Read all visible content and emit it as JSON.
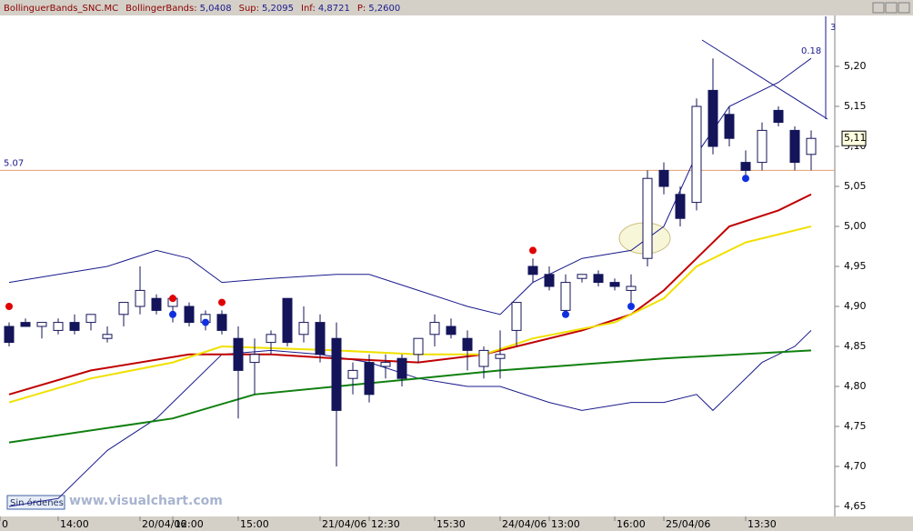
{
  "chart_data": {
    "type": "candlestick",
    "title": "BollinguerBands_SNC.MC",
    "indicator_info": [
      {
        "label": "BollingerBands:",
        "value": "5,0408"
      },
      {
        "label": "Sup:",
        "value": "5,2095"
      },
      {
        "label": "Inf:",
        "value": "4,8721"
      },
      {
        "label": "P:",
        "value": "5,2600"
      }
    ],
    "categories": [
      "0",
      null,
      null,
      "14:00",
      null,
      null,
      null,
      null,
      "20/04/06",
      null,
      "12:00",
      null,
      null,
      null,
      "15:00",
      null,
      null,
      null,
      null,
      "21/04/06",
      null,
      null,
      "12:30",
      null,
      null,
      null,
      "15:30",
      null,
      null,
      null,
      "24/04/06",
      null,
      null,
      "13:00",
      null,
      null,
      null,
      "16:00",
      null,
      null,
      "25/04/06",
      null,
      null,
      null,
      null,
      "13:30",
      null,
      null,
      null,
      null
    ],
    "ohlc": [
      [
        4.875,
        4.88,
        4.85,
        4.855
      ],
      [
        4.88,
        4.885,
        4.875,
        4.875
      ],
      [
        4.875,
        4.88,
        4.86,
        4.88
      ],
      [
        4.87,
        4.885,
        4.865,
        4.88
      ],
      [
        4.88,
        4.89,
        4.865,
        4.87
      ],
      [
        4.88,
        4.89,
        4.87,
        4.89
      ],
      [
        4.86,
        4.875,
        4.855,
        4.865
      ],
      [
        4.89,
        4.9,
        4.875,
        4.905
      ],
      [
        4.9,
        4.95,
        4.89,
        4.92
      ],
      [
        4.91,
        4.915,
        4.89,
        4.895
      ],
      [
        4.9,
        4.915,
        4.88,
        4.91
      ],
      [
        4.9,
        4.905,
        4.875,
        4.88
      ],
      [
        4.88,
        4.895,
        4.87,
        4.89
      ],
      [
        4.89,
        4.895,
        4.865,
        4.87
      ],
      [
        4.86,
        4.875,
        4.76,
        4.82
      ],
      [
        4.83,
        4.86,
        4.79,
        4.84
      ],
      [
        4.855,
        4.87,
        4.84,
        4.865
      ],
      [
        4.91,
        4.91,
        4.85,
        4.855
      ],
      [
        4.865,
        4.9,
        4.855,
        4.88
      ],
      [
        4.88,
        4.89,
        4.83,
        4.84
      ],
      [
        4.86,
        4.88,
        4.7,
        4.77
      ],
      [
        4.81,
        4.83,
        4.79,
        4.82
      ],
      [
        4.83,
        4.84,
        4.78,
        4.79
      ],
      [
        4.825,
        4.84,
        4.81,
        4.83
      ],
      [
        4.835,
        4.84,
        4.8,
        4.81
      ],
      [
        4.84,
        4.86,
        4.83,
        4.86
      ],
      [
        4.865,
        4.89,
        4.85,
        4.88
      ],
      [
        4.875,
        4.885,
        4.86,
        4.865
      ],
      [
        4.86,
        4.87,
        4.82,
        4.845
      ],
      [
        4.825,
        4.85,
        4.81,
        4.845
      ],
      [
        4.835,
        4.87,
        4.81,
        4.84
      ],
      [
        4.87,
        4.9,
        4.85,
        4.905
      ],
      [
        4.95,
        4.96,
        4.93,
        4.94
      ],
      [
        4.94,
        4.95,
        4.92,
        4.925
      ],
      [
        4.895,
        4.94,
        4.89,
        4.93
      ],
      [
        4.935,
        4.94,
        4.93,
        4.94
      ],
      [
        4.94,
        4.945,
        4.925,
        4.93
      ],
      [
        4.93,
        4.935,
        4.92,
        4.925
      ],
      [
        4.92,
        4.94,
        4.9,
        4.925
      ],
      [
        4.96,
        5.07,
        4.95,
        5.06
      ],
      [
        5.07,
        5.08,
        5.04,
        5.05
      ],
      [
        5.04,
        5.05,
        5.0,
        5.01
      ],
      [
        5.03,
        5.16,
        5.02,
        5.15
      ],
      [
        5.17,
        5.21,
        5.09,
        5.1
      ],
      [
        5.14,
        5.15,
        5.1,
        5.11
      ],
      [
        5.08,
        5.095,
        5.06,
        5.07
      ],
      [
        5.08,
        5.13,
        5.07,
        5.12
      ],
      [
        5.145,
        5.15,
        5.125,
        5.13
      ],
      [
        5.12,
        5.125,
        5.07,
        5.08
      ],
      [
        5.09,
        5.12,
        5.07,
        5.11
      ]
    ],
    "up_color": "#ffffff",
    "down_color": "#14145a",
    "lines": [
      {
        "color": "#1a1a8c",
        "x": [
          0,
          3,
          6,
          9,
          11,
          13,
          16,
          20,
          22,
          25,
          28,
          30,
          32,
          35,
          38,
          40,
          42,
          44,
          47,
          49
        ],
        "values": [
          4.93,
          4.94,
          4.95,
          4.97,
          4.96,
          4.93,
          4.935,
          4.94,
          4.94,
          4.92,
          4.9,
          4.89,
          4.93,
          4.96,
          4.97,
          5.0,
          5.09,
          5.15,
          5.18,
          5.21
        ]
      },
      {
        "color": "#1a1a8c",
        "x": [
          0,
          3,
          6,
          9,
          11,
          13,
          16,
          19,
          22,
          25,
          28,
          30,
          33,
          35,
          38,
          40,
          42,
          43,
          44,
          46,
          48,
          49
        ],
        "values": [
          4.65,
          4.66,
          4.72,
          4.76,
          4.8,
          4.84,
          4.845,
          4.84,
          4.83,
          4.81,
          4.8,
          4.8,
          4.78,
          4.77,
          4.78,
          4.78,
          4.79,
          4.77,
          4.79,
          4.83,
          4.85,
          4.87
        ]
      },
      {
        "color": "#c00000",
        "x": [
          0,
          5,
          11,
          16,
          20,
          25,
          29,
          31,
          35,
          38,
          40,
          42,
          44,
          47,
          49
        ],
        "values": [
          4.79,
          4.82,
          4.84,
          4.84,
          4.835,
          4.83,
          4.84,
          4.85,
          4.87,
          4.89,
          4.92,
          4.96,
          5.0,
          5.02,
          5.04
        ]
      },
      {
        "color": "#f0e000",
        "x": [
          0,
          5,
          10,
          13,
          20,
          25,
          29,
          32,
          37,
          40,
          42,
          45,
          49
        ],
        "values": [
          4.78,
          4.81,
          4.83,
          4.85,
          4.845,
          4.84,
          4.84,
          4.86,
          4.88,
          4.91,
          4.95,
          4.98,
          5.0
        ]
      },
      {
        "color": "#108010",
        "x": [
          0,
          10,
          15,
          20,
          25,
          30,
          40,
          49
        ],
        "values": [
          4.73,
          4.76,
          4.79,
          4.8,
          4.81,
          4.82,
          4.835,
          4.845
        ]
      }
    ],
    "markers": [
      {
        "color": "#e00000",
        "x": [
          0,
          10,
          13,
          32
        ],
        "values": [
          4.9,
          4.91,
          4.905,
          4.97
        ]
      },
      {
        "color": "#1030e0",
        "x": [
          10,
          12,
          34,
          38,
          45
        ],
        "values": [
          4.89,
          4.88,
          4.89,
          4.9,
          5.06
        ]
      }
    ],
    "hline": {
      "value": 5.07,
      "label": "5.07",
      "color": "#e0a070"
    },
    "last_price": {
      "value": 5.11,
      "label": "5,11"
    },
    "corner_labels": [
      "3",
      "0.18"
    ],
    "ylim": [
      4.6375,
      5.2625
    ],
    "yticks": [
      {
        "value": 4.65,
        "label": "4,65"
      },
      {
        "value": 4.7,
        "label": "4,70"
      },
      {
        "value": 4.75,
        "label": "4,75"
      },
      {
        "value": 4.8,
        "label": "4,80"
      },
      {
        "value": 4.85,
        "label": "4,85"
      },
      {
        "value": 4.9,
        "label": "4,90"
      },
      {
        "value": 4.95,
        "label": "4,95"
      },
      {
        "value": 5.0,
        "label": "5,00"
      },
      {
        "value": 5.05,
        "label": "5,05"
      },
      {
        "value": 5.1,
        "label": "5,10"
      },
      {
        "value": 5.15,
        "label": "5,15"
      },
      {
        "value": 5.2,
        "label": "5,20"
      }
    ],
    "orders_button": "Sin órdenes",
    "watermark": "www.visualchart.com"
  }
}
